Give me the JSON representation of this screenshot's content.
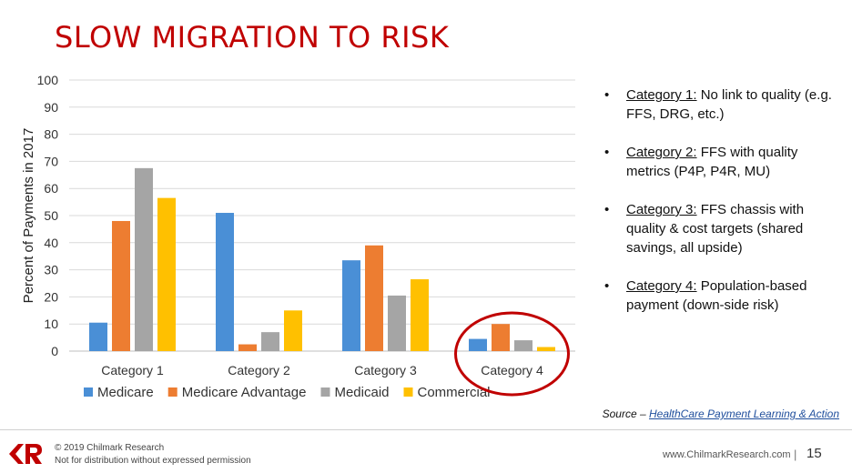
{
  "slide": {
    "title": "SLOW MIGRATION TO RISK"
  },
  "chart_data": {
    "type": "bar",
    "ylabel": "Percent of Payments in 2017",
    "ylim": [
      0,
      100
    ],
    "yticks": [
      0,
      10,
      20,
      30,
      40,
      50,
      60,
      70,
      80,
      90,
      100
    ],
    "grid": true,
    "legend_position": "bottom",
    "categories": [
      "Category 1",
      "Category 2",
      "Category 3",
      "Category 4"
    ],
    "series": [
      {
        "name": "Medicare",
        "color": "#4a8fd6",
        "values": [
          10.5,
          51,
          33.5,
          4.5
        ]
      },
      {
        "name": "Medicare Advantage",
        "color": "#ed7d31",
        "values": [
          48,
          2.5,
          39,
          10
        ]
      },
      {
        "name": "Medicaid",
        "color": "#a5a5a5",
        "values": [
          67.5,
          7,
          20.5,
          4
        ]
      },
      {
        "name": "Commercial",
        "color": "#ffc000",
        "values": [
          56.5,
          15,
          26.5,
          1.5
        ]
      }
    ],
    "annotation": {
      "type": "circle",
      "target": "Category 4",
      "color": "#c00000"
    }
  },
  "bullets": [
    {
      "title": "Category 1:",
      "text": " No link to quality (e.g. FFS, DRG, etc.)"
    },
    {
      "title": "Category 2:",
      "text": " FFS with quality metrics (P4P, P4R, MU)"
    },
    {
      "title": "Category 3:",
      "text": " FFS chassis with quality & cost targets (shared savings, all upside)"
    },
    {
      "title": "Category 4:",
      "text": " Population-based payment (down-side risk)"
    }
  ],
  "bullet_glyph": "•",
  "source": {
    "prefix": "Source – ",
    "link": "HealthCare Payment Learning & Action"
  },
  "footer": {
    "copyright": "© 2019 Chilmark Research",
    "notice": "Not for distribution without expressed permission",
    "website": "www.ChilmarkResearch.com",
    "separator": "|",
    "page_number": "15"
  }
}
